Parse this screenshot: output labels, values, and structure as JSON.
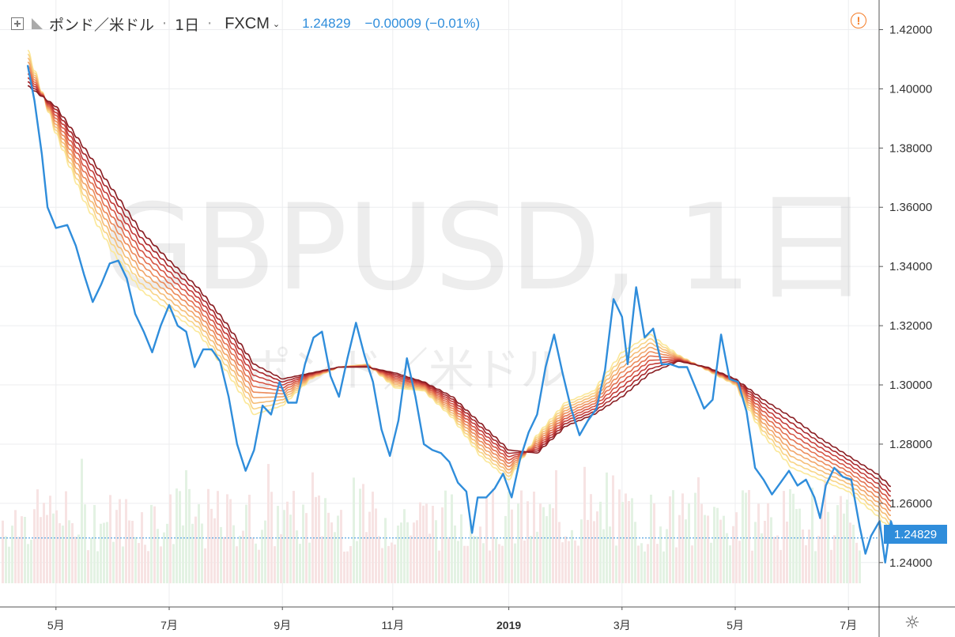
{
  "legend": {
    "symbol_name": "ポンド／米ドル",
    "interval": "1日",
    "exchange": "FXCM",
    "last_price": "1.24829",
    "change": "−0.00009 (−0.01%)"
  },
  "watermark": {
    "main": "GBPUSD, 1日",
    "sub": "ポンド／米ドル"
  },
  "last_price_tag": "1.24829",
  "icons": {
    "alert": "exclamation-circle-icon",
    "settings": "gear-icon",
    "add": "plus-square-icon",
    "flag": "flag-icon"
  },
  "colors": {
    "price_line": "#2f8ddb",
    "ribbon": [
      "#fbe89a",
      "#f8d487",
      "#f5bd77",
      "#f1a569",
      "#ec8c5c",
      "#e37150",
      "#d65645",
      "#c43d39",
      "#a9282c",
      "#8a1e23"
    ],
    "volume_up": "#e3f2e3",
    "volume_down": "#f7e3e3"
  },
  "chart_data": {
    "type": "line",
    "title": "",
    "xlabel": "",
    "ylabel": "",
    "ylim": [
      1.225,
      1.43
    ],
    "y_ticks": [
      "1.42000",
      "1.40000",
      "1.38000",
      "1.36000",
      "1.34000",
      "1.32000",
      "1.30000",
      "1.28000",
      "1.26000",
      "1.24000"
    ],
    "x_tick_labels": [
      {
        "label": "5月",
        "t": 0.5,
        "bold": false
      },
      {
        "label": "7月",
        "t": 2.5,
        "bold": false
      },
      {
        "label": "9月",
        "t": 4.5,
        "bold": false
      },
      {
        "label": "11月",
        "t": 6.45,
        "bold": false
      },
      {
        "label": "2019",
        "t": 8.5,
        "bold": true
      },
      {
        "label": "3月",
        "t": 10.5,
        "bold": false
      },
      {
        "label": "5月",
        "t": 12.5,
        "bold": false
      },
      {
        "label": "7月",
        "t": 14.5,
        "bold": false
      }
    ],
    "x_range": [
      0,
      15.35
    ],
    "series": [
      {
        "kind": "price",
        "points": [
          [
            0.0,
            1.408
          ],
          [
            0.12,
            1.396
          ],
          [
            0.25,
            1.378
          ],
          [
            0.35,
            1.36
          ],
          [
            0.5,
            1.353
          ],
          [
            0.7,
            1.354
          ],
          [
            0.85,
            1.347
          ],
          [
            1.0,
            1.337
          ],
          [
            1.15,
            1.328
          ],
          [
            1.3,
            1.334
          ],
          [
            1.45,
            1.341
          ],
          [
            1.6,
            1.342
          ],
          [
            1.75,
            1.336
          ],
          [
            1.9,
            1.324
          ],
          [
            2.05,
            1.318
          ],
          [
            2.2,
            1.311
          ],
          [
            2.35,
            1.32
          ],
          [
            2.5,
            1.327
          ],
          [
            2.65,
            1.32
          ],
          [
            2.8,
            1.318
          ],
          [
            2.95,
            1.306
          ],
          [
            3.1,
            1.312
          ],
          [
            3.25,
            1.312
          ],
          [
            3.4,
            1.308
          ],
          [
            3.55,
            1.296
          ],
          [
            3.7,
            1.28
          ],
          [
            3.85,
            1.271
          ],
          [
            4.0,
            1.278
          ],
          [
            4.15,
            1.293
          ],
          [
            4.3,
            1.29
          ],
          [
            4.45,
            1.301
          ],
          [
            4.6,
            1.294
          ],
          [
            4.75,
            1.294
          ],
          [
            4.9,
            1.307
          ],
          [
            5.05,
            1.316
          ],
          [
            5.2,
            1.318
          ],
          [
            5.35,
            1.303
          ],
          [
            5.5,
            1.296
          ],
          [
            5.65,
            1.309
          ],
          [
            5.8,
            1.321
          ],
          [
            5.95,
            1.31
          ],
          [
            6.1,
            1.301
          ],
          [
            6.25,
            1.285
          ],
          [
            6.4,
            1.276
          ],
          [
            6.55,
            1.288
          ],
          [
            6.7,
            1.309
          ],
          [
            6.85,
            1.296
          ],
          [
            7.0,
            1.28
          ],
          [
            7.15,
            1.278
          ],
          [
            7.3,
            1.277
          ],
          [
            7.45,
            1.274
          ],
          [
            7.6,
            1.267
          ],
          [
            7.75,
            1.264
          ],
          [
            7.85,
            1.25
          ],
          [
            7.95,
            1.262
          ],
          [
            8.1,
            1.262
          ],
          [
            8.25,
            1.265
          ],
          [
            8.4,
            1.27
          ],
          [
            8.55,
            1.262
          ],
          [
            8.7,
            1.275
          ],
          [
            8.85,
            1.284
          ],
          [
            9.0,
            1.29
          ],
          [
            9.15,
            1.306
          ],
          [
            9.3,
            1.317
          ],
          [
            9.45,
            1.304
          ],
          [
            9.6,
            1.292
          ],
          [
            9.75,
            1.283
          ],
          [
            9.9,
            1.288
          ],
          [
            10.05,
            1.292
          ],
          [
            10.2,
            1.305
          ],
          [
            10.35,
            1.329
          ],
          [
            10.5,
            1.323
          ],
          [
            10.6,
            1.307
          ],
          [
            10.75,
            1.333
          ],
          [
            10.9,
            1.316
          ],
          [
            11.05,
            1.319
          ],
          [
            11.2,
            1.307
          ],
          [
            11.35,
            1.307
          ],
          [
            11.5,
            1.306
          ],
          [
            11.65,
            1.306
          ],
          [
            11.8,
            1.299
          ],
          [
            11.95,
            1.292
          ],
          [
            12.1,
            1.295
          ],
          [
            12.25,
            1.317
          ],
          [
            12.4,
            1.302
          ],
          [
            12.55,
            1.301
          ],
          [
            12.7,
            1.291
          ],
          [
            12.85,
            1.272
          ],
          [
            13.0,
            1.268
          ],
          [
            13.15,
            1.263
          ],
          [
            13.3,
            1.267
          ],
          [
            13.45,
            1.271
          ],
          [
            13.6,
            1.266
          ],
          [
            13.75,
            1.268
          ],
          [
            13.9,
            1.262
          ],
          [
            14.0,
            1.255
          ],
          [
            14.1,
            1.266
          ],
          [
            14.25,
            1.272
          ],
          [
            14.4,
            1.269
          ],
          [
            14.55,
            1.268
          ],
          [
            14.7,
            1.252
          ],
          [
            14.8,
            1.243
          ],
          [
            14.9,
            1.249
          ],
          [
            15.05,
            1.254
          ],
          [
            15.15,
            1.24
          ],
          [
            15.25,
            1.254
          ],
          [
            15.35,
            1.248
          ]
        ]
      },
      {
        "kind": "ma_slow",
        "points": [
          [
            0.0,
            1.401
          ],
          [
            0.5,
            1.394
          ],
          [
            1.0,
            1.38
          ],
          [
            1.5,
            1.366
          ],
          [
            2.0,
            1.352
          ],
          [
            2.5,
            1.342
          ],
          [
            3.0,
            1.333
          ],
          [
            3.5,
            1.321
          ],
          [
            4.0,
            1.307
          ],
          [
            4.5,
            1.302
          ],
          [
            5.0,
            1.304
          ],
          [
            5.5,
            1.306
          ],
          [
            6.0,
            1.306
          ],
          [
            6.5,
            1.304
          ],
          [
            7.0,
            1.301
          ],
          [
            7.5,
            1.296
          ],
          [
            8.0,
            1.287
          ],
          [
            8.5,
            1.278
          ],
          [
            9.0,
            1.277
          ],
          [
            9.5,
            1.286
          ],
          [
            10.0,
            1.29
          ],
          [
            10.5,
            1.296
          ],
          [
            11.0,
            1.304
          ],
          [
            11.5,
            1.308
          ],
          [
            12.0,
            1.306
          ],
          [
            12.5,
            1.302
          ],
          [
            13.0,
            1.295
          ],
          [
            13.5,
            1.289
          ],
          [
            14.0,
            1.282
          ],
          [
            14.5,
            1.276
          ],
          [
            15.0,
            1.27
          ],
          [
            15.35,
            1.264
          ]
        ]
      },
      {
        "kind": "ma_fast",
        "points": [
          [
            0.0,
            1.413
          ],
          [
            0.5,
            1.385
          ],
          [
            1.0,
            1.362
          ],
          [
            1.5,
            1.345
          ],
          [
            2.0,
            1.332
          ],
          [
            2.5,
            1.325
          ],
          [
            3.0,
            1.318
          ],
          [
            3.5,
            1.305
          ],
          [
            4.0,
            1.29
          ],
          [
            4.5,
            1.293
          ],
          [
            5.0,
            1.302
          ],
          [
            5.5,
            1.306
          ],
          [
            6.0,
            1.307
          ],
          [
            6.5,
            1.299
          ],
          [
            7.0,
            1.298
          ],
          [
            7.5,
            1.289
          ],
          [
            8.0,
            1.276
          ],
          [
            8.5,
            1.268
          ],
          [
            9.0,
            1.283
          ],
          [
            9.5,
            1.294
          ],
          [
            10.0,
            1.298
          ],
          [
            10.5,
            1.311
          ],
          [
            11.0,
            1.317
          ],
          [
            11.5,
            1.31
          ],
          [
            12.0,
            1.305
          ],
          [
            12.5,
            1.3
          ],
          [
            13.0,
            1.283
          ],
          [
            13.5,
            1.272
          ],
          [
            14.0,
            1.268
          ],
          [
            14.5,
            1.264
          ],
          [
            15.0,
            1.256
          ],
          [
            15.35,
            1.249
          ]
        ]
      }
    ]
  }
}
